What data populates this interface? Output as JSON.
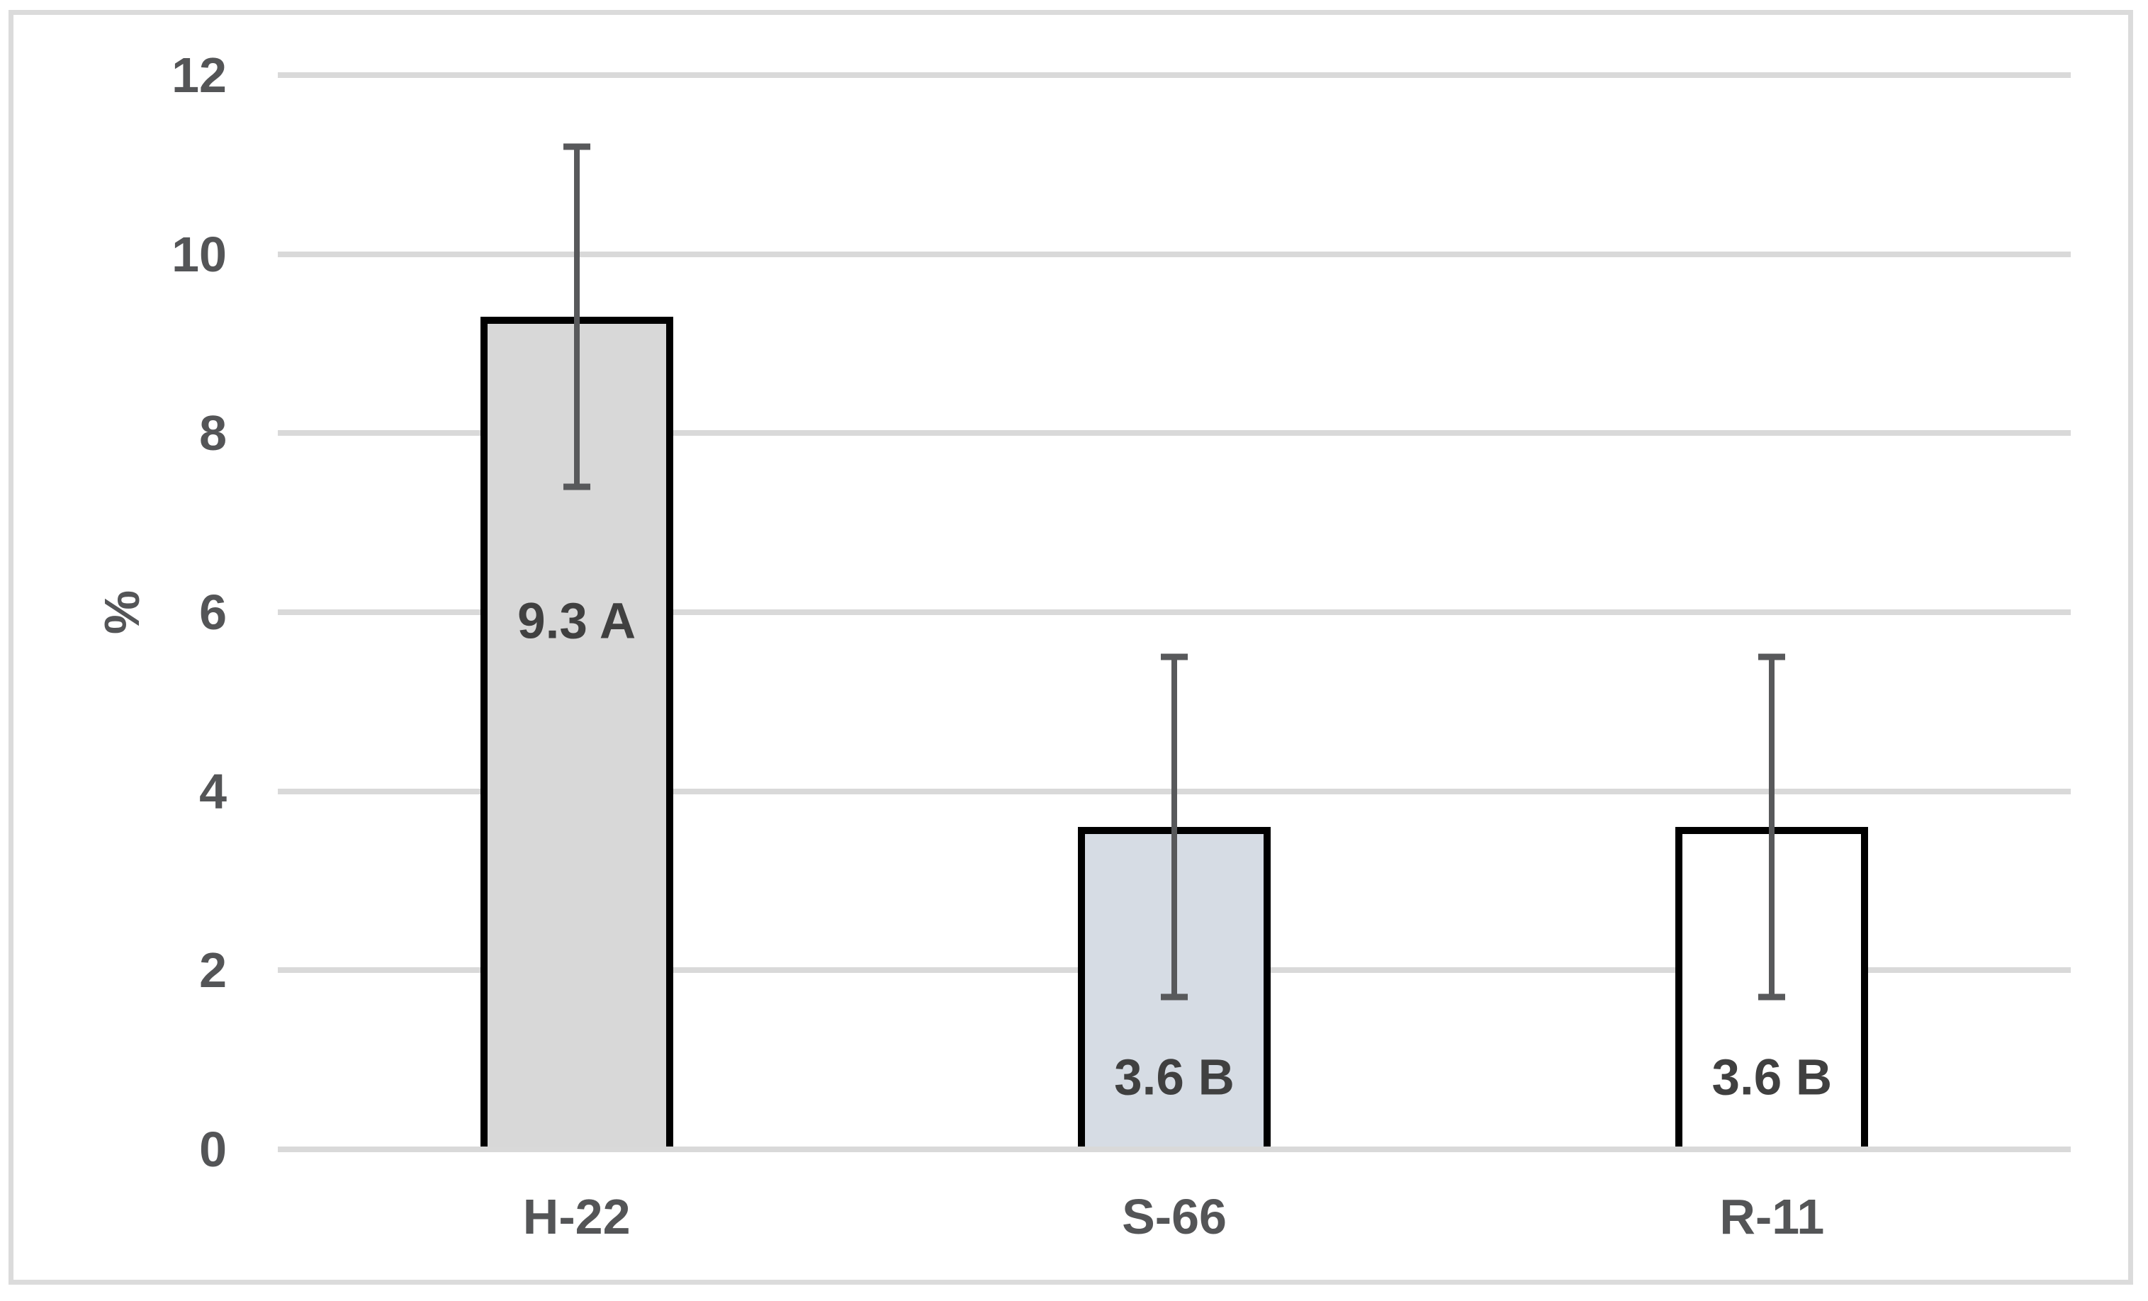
{
  "chart_data": {
    "type": "bar",
    "title": "",
    "ylabel": "%",
    "xlabel": "",
    "ylim": [
      0,
      12
    ],
    "yticks": [
      0,
      2,
      4,
      6,
      8,
      10,
      12
    ],
    "grid": "horizontal",
    "legend": "none",
    "categories": [
      "H-22",
      "S-66",
      "R-11"
    ],
    "values": [
      9.3,
      3.6,
      3.6
    ],
    "error_low": [
      7.4,
      1.7,
      1.7
    ],
    "error_high": [
      11.2,
      5.5,
      5.5
    ],
    "data_labels": [
      "9.3 A",
      "3.6 B",
      "3.6 B"
    ],
    "data_label_y": [
      5.9,
      0.8,
      0.8
    ],
    "colors": {
      "bar_fills": [
        "#D8D8D8",
        "#D6DCE4",
        "#FFFFFF"
      ],
      "bar_border": "#000000",
      "gridline": "#D9D9D9",
      "axis_line": "#D9D9D9",
      "error_bar": "#58595B",
      "tick_text": "#545557",
      "data_label_text": "#404040",
      "frame_border": "#DBDBDB",
      "background": "#FFFFFF"
    }
  }
}
